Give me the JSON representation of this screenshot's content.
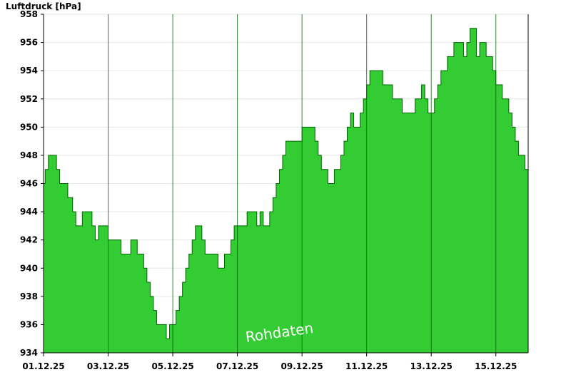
{
  "chart_data": {
    "type": "area",
    "ylabel": "Luftdruck [hPa]",
    "watermark": "Rohdaten",
    "ylim": [
      934,
      958
    ],
    "yticks": [
      934,
      936,
      938,
      940,
      942,
      944,
      946,
      948,
      950,
      952,
      954,
      956,
      958
    ],
    "xlim": [
      0,
      15
    ],
    "xtick_positions": [
      0,
      2,
      4,
      6,
      8,
      10,
      12,
      14
    ],
    "xtick_labels": [
      "01.12.25",
      "03.12.25",
      "05.12.25",
      "07.12.25",
      "09.12.25",
      "11.12.25",
      "13.12.25",
      "15.12.25"
    ],
    "grid": true,
    "fill_color": "#33cc33",
    "line_color": "#006600",
    "series": [
      {
        "x": [
          0.0,
          0.05,
          0.15,
          0.3,
          0.4,
          0.5,
          0.6,
          0.75,
          0.9,
          1.0,
          1.1,
          1.2,
          1.3,
          1.5,
          1.6,
          1.7,
          1.8,
          1.9,
          2.0,
          2.2,
          2.4,
          2.6,
          2.7,
          2.9,
          3.0,
          3.1,
          3.2,
          3.3,
          3.4,
          3.5,
          3.6,
          3.7,
          3.8,
          3.9,
          4.0,
          4.1,
          4.2,
          4.3,
          4.4,
          4.5,
          4.6,
          4.7,
          4.8,
          4.9,
          5.0,
          5.1,
          5.2,
          5.3,
          5.4,
          5.6,
          5.7,
          5.8,
          5.9,
          6.0,
          6.1,
          6.2,
          6.3,
          6.5,
          6.6,
          6.7,
          6.8,
          6.9,
          7.0,
          7.1,
          7.2,
          7.3,
          7.4,
          7.5,
          7.6,
          7.8,
          8.0,
          8.1,
          8.3,
          8.4,
          8.5,
          8.6,
          8.7,
          8.8,
          8.9,
          9.0,
          9.1,
          9.2,
          9.3,
          9.4,
          9.5,
          9.6,
          9.7,
          9.8,
          9.9,
          10.0,
          10.1,
          10.2,
          10.3,
          10.4,
          10.5,
          10.6,
          10.8,
          11.0,
          11.1,
          11.2,
          11.4,
          11.5,
          11.6,
          11.7,
          11.8,
          11.9,
          12.0,
          12.1,
          12.2,
          12.3,
          12.4,
          12.5,
          12.6,
          12.7,
          12.8,
          12.9,
          13.0,
          13.1,
          13.2,
          13.3,
          13.4,
          13.5,
          13.7,
          13.8,
          13.9,
          14.0,
          14.1,
          14.2,
          14.3,
          14.4,
          14.5,
          14.6,
          14.7,
          14.8,
          14.9,
          15.0
        ],
        "values": [
          946,
          947,
          948,
          948,
          947,
          946,
          946,
          945,
          944,
          943,
          943,
          944,
          944,
          943,
          942,
          943,
          943,
          943,
          942,
          942,
          941,
          941,
          942,
          941,
          941,
          940,
          939,
          938,
          937,
          936,
          936,
          936,
          935,
          936,
          936,
          937,
          938,
          939,
          940,
          941,
          942,
          943,
          943,
          942,
          941,
          941,
          941,
          941,
          940,
          941,
          941,
          942,
          943,
          943,
          943,
          943,
          944,
          944,
          943,
          944,
          943,
          943,
          944,
          945,
          946,
          947,
          948,
          949,
          949,
          949,
          950,
          950,
          950,
          949,
          948,
          947,
          947,
          946,
          946,
          947,
          947,
          948,
          949,
          950,
          951,
          950,
          950,
          951,
          952,
          953,
          954,
          954,
          954,
          954,
          953,
          953,
          952,
          952,
          951,
          951,
          951,
          952,
          952,
          953,
          952,
          951,
          951,
          952,
          953,
          954,
          954,
          955,
          955,
          956,
          956,
          956,
          955,
          956,
          957,
          957,
          955,
          956,
          955,
          955,
          954,
          953,
          953,
          952,
          952,
          951,
          950,
          949,
          948,
          948,
          947,
          947
        ]
      }
    ]
  }
}
